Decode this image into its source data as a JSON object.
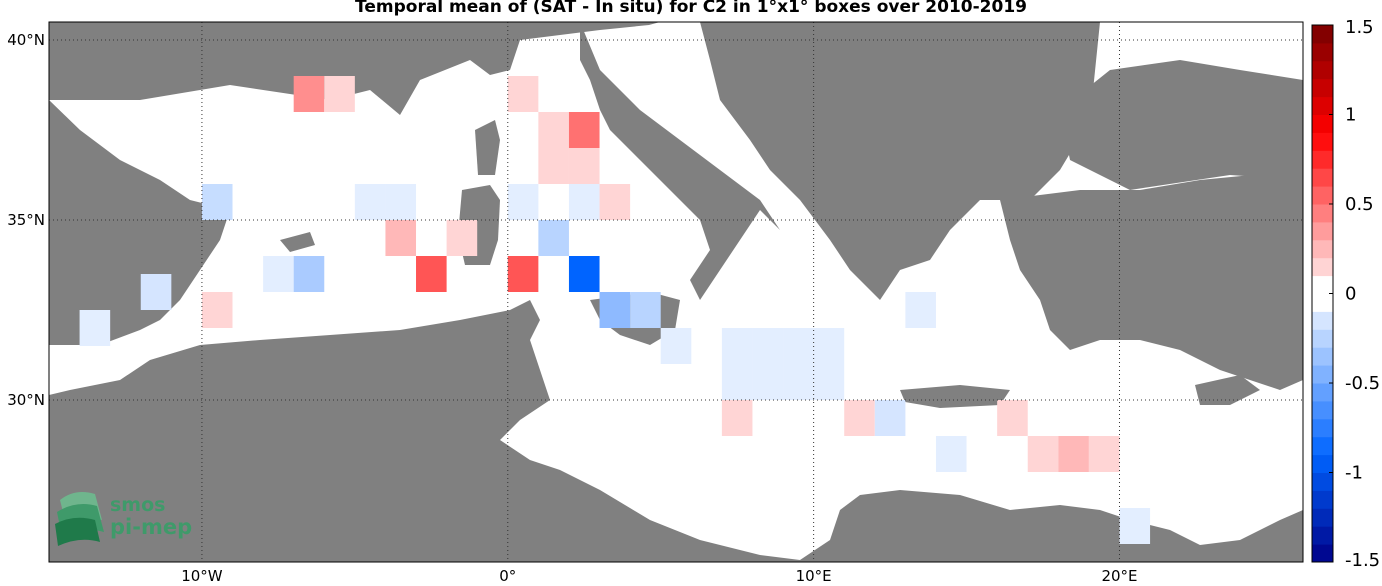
{
  "title": "Temporal mean of (SAT - In situ) for C2 in 1°x1° boxes over 2010-2019",
  "map": {
    "lon_range": [
      -15,
      26
    ],
    "lat_range": [
      25.5,
      40.5
    ],
    "land_color": "#808080",
    "sea_color": "#ffffff",
    "lat_ticks": [
      {
        "value": 40,
        "label": "40°N"
      },
      {
        "value": 35,
        "label": "35°N"
      },
      {
        "value": 30,
        "label": "30°N"
      }
    ],
    "lon_ticks": [
      {
        "value": -10,
        "label": "10°W"
      },
      {
        "value": 0,
        "label": "0°"
      },
      {
        "value": 10,
        "label": "10°E"
      },
      {
        "value": 20,
        "label": "20°E"
      }
    ],
    "grid": "dotted"
  },
  "colorbar": {
    "min": -1.5,
    "max": 1.5,
    "levels": 30,
    "ticks": [
      {
        "value": 1.5,
        "label": "1.5"
      },
      {
        "value": 1,
        "label": "1"
      },
      {
        "value": 0.5,
        "label": "0.5"
      },
      {
        "value": 0,
        "label": "0"
      },
      {
        "value": -0.5,
        "label": "-0.5"
      },
      {
        "value": -1,
        "label": "-1"
      },
      {
        "value": -1.5,
        "label": "-1.5"
      }
    ]
  },
  "chart_data": {
    "type": "heatmap",
    "cell_size_deg": 1,
    "cells": [
      {
        "lon": -6.5,
        "lat": 38.5,
        "value": 0.4
      },
      {
        "lon": -5.5,
        "lat": 38.5,
        "value": 0.15
      },
      {
        "lon": 0.5,
        "lat": 38.5,
        "value": 0.15
      },
      {
        "lon": 1.5,
        "lat": 37.5,
        "value": 0.15
      },
      {
        "lon": 2.5,
        "lat": 37.5,
        "value": 0.5
      },
      {
        "lon": 1.5,
        "lat": 36.5,
        "value": 0.15
      },
      {
        "lon": 2.5,
        "lat": 36.5,
        "value": 0.15
      },
      {
        "lon": -9.5,
        "lat": 35.5,
        "value": -0.2
      },
      {
        "lon": -4.5,
        "lat": 35.5,
        "value": -0.1
      },
      {
        "lon": -3.5,
        "lat": 35.5,
        "value": -0.1
      },
      {
        "lon": 0.5,
        "lat": 35.5,
        "value": -0.1
      },
      {
        "lon": 2.5,
        "lat": 35.5,
        "value": -0.1
      },
      {
        "lon": 3.5,
        "lat": 35.5,
        "value": 0.15
      },
      {
        "lon": -3.5,
        "lat": 34.5,
        "value": 0.25
      },
      {
        "lon": -1.5,
        "lat": 34.5,
        "value": 0.15
      },
      {
        "lon": 1.5,
        "lat": 34.5,
        "value": -0.25
      },
      {
        "lon": -7.5,
        "lat": 33.5,
        "value": -0.1
      },
      {
        "lon": -6.5,
        "lat": 33.5,
        "value": -0.3
      },
      {
        "lon": -2.5,
        "lat": 33.5,
        "value": 0.6
      },
      {
        "lon": 0.5,
        "lat": 33.5,
        "value": 0.6
      },
      {
        "lon": 2.5,
        "lat": 33.5,
        "value": -0.9
      },
      {
        "lon": -11.5,
        "lat": 33.0,
        "value": -0.15
      },
      {
        "lon": -9.5,
        "lat": 32.5,
        "value": 0.15
      },
      {
        "lon": 3.5,
        "lat": 32.5,
        "value": -0.4
      },
      {
        "lon": 4.5,
        "lat": 32.5,
        "value": -0.25
      },
      {
        "lon": 13.5,
        "lat": 32.5,
        "value": -0.1
      },
      {
        "lon": -13.5,
        "lat": 32.0,
        "value": -0.1
      },
      {
        "lon": 5.5,
        "lat": 31.5,
        "value": -0.1
      },
      {
        "lon": 7.5,
        "lat": 31.5,
        "value": -0.1
      },
      {
        "lon": 8.5,
        "lat": 31.5,
        "value": -0.1
      },
      {
        "lon": 9.5,
        "lat": 31.5,
        "value": -0.1
      },
      {
        "lon": 10.5,
        "lat": 31.5,
        "value": -0.1
      },
      {
        "lon": 7.5,
        "lat": 30.5,
        "value": -0.1
      },
      {
        "lon": 8.5,
        "lat": 30.5,
        "value": -0.1
      },
      {
        "lon": 9.5,
        "lat": 30.5,
        "value": -0.1
      },
      {
        "lon": 10.5,
        "lat": 30.5,
        "value": -0.1
      },
      {
        "lon": 7.5,
        "lat": 29.5,
        "value": 0.15
      },
      {
        "lon": 11.5,
        "lat": 29.5,
        "value": 0.15
      },
      {
        "lon": 12.5,
        "lat": 29.5,
        "value": -0.15
      },
      {
        "lon": 16.5,
        "lat": 29.5,
        "value": 0.15
      },
      {
        "lon": 14.5,
        "lat": 28.5,
        "value": -0.1
      },
      {
        "lon": 17.5,
        "lat": 28.5,
        "value": 0.15
      },
      {
        "lon": 18.5,
        "lat": 28.5,
        "value": 0.25
      },
      {
        "lon": 19.5,
        "lat": 28.5,
        "value": 0.15
      },
      {
        "lon": 20.5,
        "lat": 26.5,
        "value": -0.1
      }
    ]
  },
  "logo": {
    "line1": "smos",
    "line2": "pi-mep"
  }
}
